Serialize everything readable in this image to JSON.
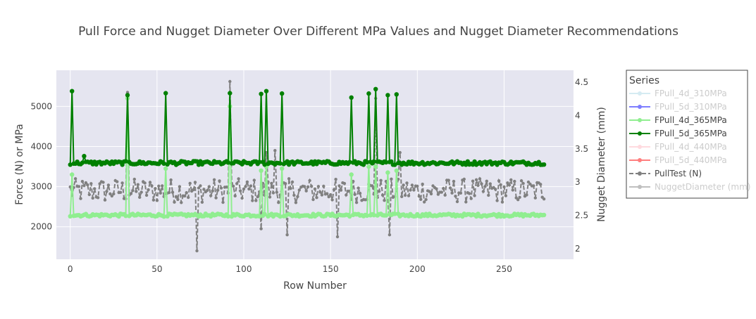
{
  "chart_data": {
    "type": "line",
    "title": "Pull Force and Nugget Diameter Over Different MPa Values and Nugget Diameter Recommendations",
    "xlabel": "Row Number",
    "ylabel": "Force (N) or MPa",
    "y2label": "Nugget Diameter (mm)",
    "xlim": [
      -8,
      290
    ],
    "ylim": [
      1190,
      5900
    ],
    "y2lim": [
      1.84,
      4.68
    ],
    "xticks": [
      0,
      50,
      100,
      150,
      200,
      250
    ],
    "yticks": [
      2000,
      3000,
      4000,
      5000
    ],
    "y2ticks": [
      2,
      2.5,
      3,
      3.5,
      4,
      4.5
    ],
    "grid": true,
    "legend_position": "right",
    "legend_title": "Series",
    "series": [
      {
        "name": "FPull_4d_310MPa",
        "color": "#add8e6",
        "style": "solid",
        "marker": true,
        "visible": false
      },
      {
        "name": "FPull_5d_310MPa",
        "color": "#0000ff",
        "style": "solid",
        "marker": true,
        "visible": false
      },
      {
        "name": "FPull_4d_365MPa",
        "color": "#90ee90",
        "style": "solid",
        "marker": true,
        "visible": true,
        "base": 2290,
        "variation": 35,
        "spikes": [
          [
            1,
            3300
          ],
          [
            33,
            5200
          ],
          [
            55,
            3450
          ],
          [
            92,
            5000
          ],
          [
            110,
            3400
          ],
          [
            113,
            3500
          ],
          [
            122,
            3450
          ],
          [
            162,
            3300
          ],
          [
            172,
            3500
          ],
          [
            176,
            3500
          ],
          [
            183,
            3350
          ],
          [
            188,
            3400
          ]
        ]
      },
      {
        "name": "FPull_5d_365MPa",
        "color": "#008000",
        "style": "solid",
        "marker": true,
        "visible": true,
        "base": 3590,
        "variation": 45,
        "spikes": [
          [
            1,
            5380
          ],
          [
            8,
            3760
          ],
          [
            33,
            5280
          ],
          [
            55,
            5330
          ],
          [
            92,
            5330
          ],
          [
            110,
            5310
          ],
          [
            113,
            5380
          ],
          [
            122,
            5320
          ],
          [
            162,
            5220
          ],
          [
            172,
            5320
          ],
          [
            176,
            5430
          ],
          [
            183,
            5280
          ],
          [
            188,
            5300
          ]
        ]
      },
      {
        "name": "FPull_4d_440MPa",
        "color": "#ffb6c1",
        "style": "solid",
        "marker": true,
        "visible": false
      },
      {
        "name": "FPull_5d_440MPa",
        "color": "#ff0000",
        "style": "solid",
        "marker": true,
        "visible": false
      },
      {
        "name": "PullTest (N)",
        "color": "#808080",
        "style": "dash",
        "marker": true,
        "visible": true,
        "base": 2900,
        "variation": 300,
        "spikes": [
          [
            33,
            5350
          ],
          [
            73,
            1400
          ],
          [
            92,
            5620
          ],
          [
            110,
            1950
          ],
          [
            113,
            3850
          ],
          [
            118,
            3900
          ],
          [
            125,
            1800
          ],
          [
            154,
            1750
          ],
          [
            176,
            5200
          ],
          [
            184,
            1800
          ],
          [
            190,
            3850
          ]
        ]
      },
      {
        "name": "NuggetDiameter (mm)",
        "color": "#808080",
        "style": "solid",
        "marker": true,
        "visible": false
      }
    ],
    "n_points": 274
  }
}
